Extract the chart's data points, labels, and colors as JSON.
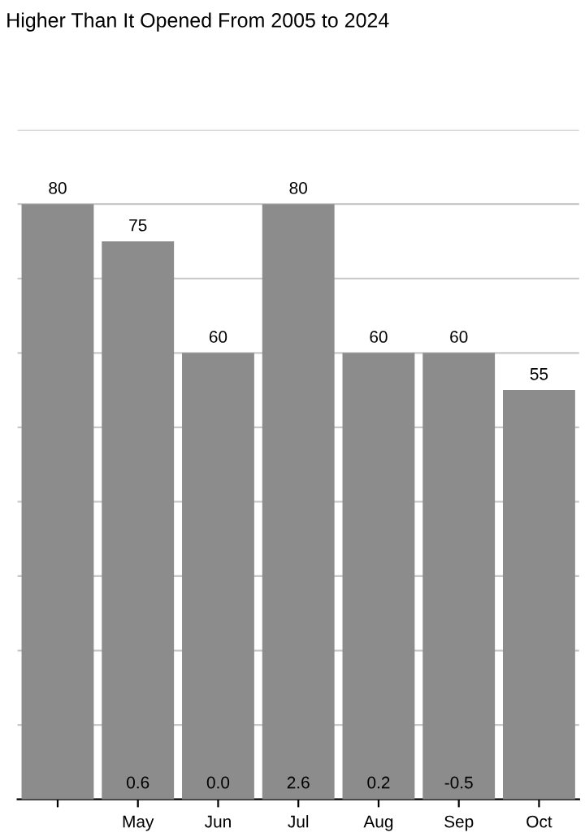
{
  "chart_data": {
    "type": "bar",
    "title": "Higher Than It Opened From 2005 to 2024",
    "categories": [
      null,
      "May",
      "Jun",
      "Jul",
      "Aug",
      "Sep",
      "Oct"
    ],
    "values": [
      80,
      75,
      60,
      80,
      60,
      60,
      55
    ],
    "color": "#8c8c8c",
    "data_labels": true,
    "annotations": [
      {
        "text": "0.6",
        "x": "May",
        "y": 0
      },
      {
        "text": "0.0",
        "x": "Jun",
        "y": 0
      },
      {
        "text": "2.6",
        "x": "Jul",
        "y": 0
      },
      {
        "text": "0.2",
        "x": "Aug",
        "y": 0
      },
      {
        "text": "-0.5",
        "x": "Sep",
        "y": 0
      }
    ],
    "ylim": [
      0,
      90
    ],
    "yticks": [
      {
        "value": 0,
        "label": null
      },
      {
        "value": 10,
        "label": null
      },
      {
        "value": 20,
        "label": null
      },
      {
        "value": 30,
        "label": null
      },
      {
        "value": 40,
        "label": null
      },
      {
        "value": 50,
        "label": null
      },
      {
        "value": 60,
        "label": null
      },
      {
        "value": 70,
        "label": null
      },
      {
        "value": 80,
        "label": null
      },
      {
        "value": 90,
        "label": null
      }
    ],
    "grid": "y"
  }
}
